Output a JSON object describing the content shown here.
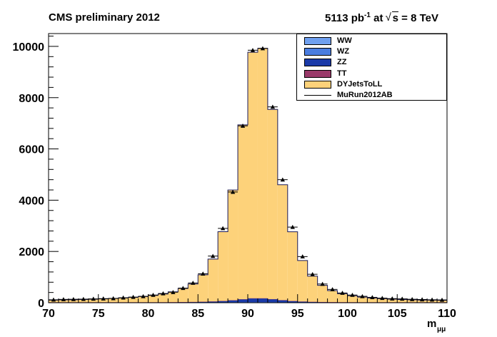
{
  "header": {
    "left": "CMS preliminary 2012",
    "lumi": "5113 pb",
    "lumi_exp": "-1",
    "at": " at ",
    "sqrt": "s",
    "energy": " = 8 TeV"
  },
  "colors": {
    "WW": "#6fa0f0",
    "WZ": "#4a7de0",
    "ZZ": "#1a3aa8",
    "TT": "#9a3a6a",
    "DYJetsToLL": "#fdd27a",
    "data": "#000000"
  },
  "legend": {
    "items": [
      {
        "label": "WW",
        "kind": "fill",
        "color": "#6fa0f0"
      },
      {
        "label": "WZ",
        "kind": "fill",
        "color": "#4a7de0"
      },
      {
        "label": "ZZ",
        "kind": "fill",
        "color": "#1a3aa8"
      },
      {
        "label": "TT",
        "kind": "fill",
        "color": "#9a3a6a"
      },
      {
        "label": "DYJetsToLL",
        "kind": "fill",
        "color": "#fdd27a"
      },
      {
        "label": "MuRun2012AB",
        "kind": "line",
        "color": "#000000"
      }
    ]
  },
  "chart_data": {
    "type": "bar",
    "xlabel": "m",
    "xlabel_sub": "μμ",
    "ylabel": "",
    "xlim": [
      70,
      110
    ],
    "ylim": [
      0,
      10500
    ],
    "bin_width": 1,
    "x_bin_edges_start": 70,
    "x_ticks": [
      70,
      75,
      80,
      85,
      90,
      95,
      100,
      105,
      110
    ],
    "y_ticks": [
      0,
      2000,
      4000,
      6000,
      8000,
      10000
    ],
    "series": [
      {
        "name": "DYJetsToLL",
        "values": [
          80,
          90,
          95,
          105,
          115,
          130,
          145,
          165,
          190,
          220,
          265,
          320,
          400,
          530,
          700,
          1050,
          1650,
          2700,
          4300,
          6800,
          9600,
          9750,
          7400,
          4500,
          2700,
          1600,
          1000,
          650,
          450,
          330,
          250,
          200,
          165,
          140,
          120,
          105,
          95,
          85,
          80,
          75
        ]
      },
      {
        "name": "TT",
        "values": [
          10,
          10,
          10,
          10,
          10,
          10,
          10,
          10,
          10,
          10,
          10,
          10,
          10,
          10,
          10,
          10,
          10,
          10,
          10,
          10,
          10,
          10,
          10,
          10,
          10,
          10,
          10,
          10,
          10,
          10,
          10,
          10,
          10,
          10,
          10,
          10,
          10,
          10,
          10,
          10
        ]
      },
      {
        "name": "ZZ",
        "values": [
          5,
          5,
          5,
          5,
          5,
          5,
          5,
          5,
          5,
          5,
          5,
          6,
          8,
          10,
          14,
          20,
          30,
          45,
          70,
          105,
          140,
          140,
          110,
          75,
          45,
          28,
          18,
          12,
          9,
          7,
          6,
          5,
          5,
          5,
          5,
          5,
          5,
          5,
          5,
          5
        ]
      },
      {
        "name": "WZ",
        "values": [
          3,
          3,
          3,
          3,
          3,
          3,
          3,
          3,
          3,
          3,
          3,
          3,
          4,
          5,
          6,
          8,
          10,
          13,
          16,
          20,
          22,
          22,
          19,
          15,
          11,
          8,
          6,
          5,
          4,
          3,
          3,
          3,
          3,
          3,
          3,
          3,
          3,
          3,
          3,
          3
        ]
      },
      {
        "name": "WW",
        "values": [
          2,
          2,
          2,
          2,
          2,
          2,
          2,
          2,
          2,
          2,
          2,
          2,
          2,
          2,
          2,
          2,
          2,
          2,
          2,
          2,
          2,
          2,
          2,
          2,
          2,
          2,
          2,
          2,
          2,
          2,
          2,
          2,
          2,
          2,
          2,
          2,
          2,
          2,
          2,
          2
        ]
      },
      {
        "name": "MuRun2012AB",
        "values": [
          115,
          130,
          135,
          140,
          150,
          160,
          170,
          195,
          220,
          250,
          300,
          360,
          410,
          570,
          770,
          1130,
          1820,
          2900,
          4320,
          6900,
          9850,
          9920,
          7640,
          4800,
          2950,
          1800,
          1110,
          730,
          520,
          380,
          300,
          250,
          210,
          180,
          160,
          150,
          135,
          125,
          115,
          110
        ]
      }
    ],
    "legend_position": "top-right",
    "grid": false
  }
}
